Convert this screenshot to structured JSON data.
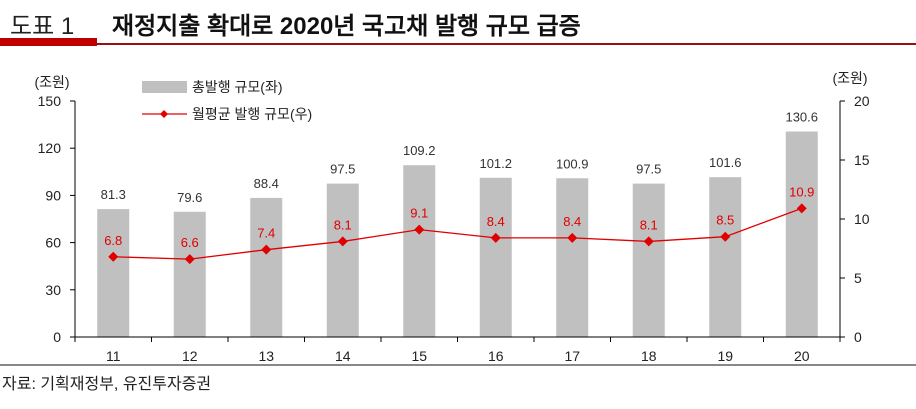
{
  "header": {
    "label": "도표 1",
    "title": "재정지출 확대로 2020년 국고채 발행 규모 급증"
  },
  "source": "자료: 기획재정부, 유진투자증권",
  "chart_data": {
    "type": "bar+line",
    "categories": [
      "11",
      "12",
      "13",
      "14",
      "15",
      "16",
      "17",
      "18",
      "19",
      "20"
    ],
    "series": [
      {
        "name": "총발행 규모(좌)",
        "type": "bar",
        "axis": "left",
        "color": "#c0c0c0",
        "values": [
          81.3,
          79.6,
          88.4,
          97.5,
          109.2,
          101.2,
          100.9,
          97.5,
          101.6,
          130.6
        ]
      },
      {
        "name": "월평균 발행 규모(우)",
        "type": "line",
        "axis": "right",
        "color": "#e00000",
        "values": [
          6.8,
          6.6,
          7.4,
          8.1,
          9.1,
          8.4,
          8.4,
          8.1,
          8.5,
          10.9
        ]
      }
    ],
    "y_left": {
      "unit": "(조원)",
      "range": [
        0,
        150
      ],
      "ticks": [
        0,
        30,
        60,
        90,
        120,
        150
      ]
    },
    "y_right": {
      "unit": "(조원)",
      "range": [
        0,
        20
      ],
      "ticks": [
        0,
        5,
        10,
        15,
        20
      ]
    },
    "legend_placement": "top-left",
    "grid": false
  }
}
